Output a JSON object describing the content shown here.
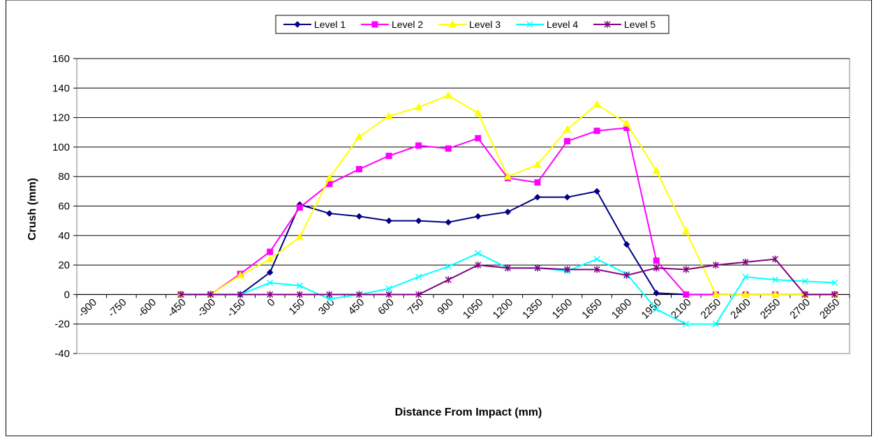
{
  "chart_data": {
    "type": "line",
    "title": "",
    "xlabel": "Distance From Impact (mm)",
    "ylabel": "Crush (mm)",
    "ylim": [
      -40,
      160
    ],
    "y_ticks": [
      -40,
      -20,
      0,
      20,
      40,
      60,
      80,
      100,
      120,
      140,
      160
    ],
    "x_ticks": [
      -900,
      -750,
      -600,
      -450,
      -300,
      -150,
      0,
      150,
      300,
      450,
      600,
      750,
      900,
      1050,
      1200,
      1350,
      1500,
      1650,
      1800,
      1950,
      2100,
      2250,
      2400,
      2550,
      2700,
      2850
    ],
    "grid": "horizontal",
    "legend_position": "top",
    "x": [
      -450,
      -300,
      -150,
      0,
      150,
      300,
      450,
      600,
      750,
      900,
      1050,
      1200,
      1350,
      1500,
      1650,
      1800,
      1950,
      2100,
      2250,
      2400,
      2550,
      2700,
      2850
    ],
    "series": [
      {
        "name": "Level 1",
        "color": "#000080",
        "marker": "diamond",
        "values": [
          0,
          0,
          0,
          15,
          61,
          55,
          53,
          50,
          50,
          49,
          53,
          56,
          66,
          66,
          70,
          34,
          1,
          0,
          0,
          0,
          0,
          0,
          0
        ]
      },
      {
        "name": "Level 2",
        "color": "#FF00FF",
        "marker": "square",
        "values": [
          0,
          0,
          14,
          29,
          59,
          75,
          85,
          94,
          101,
          99,
          106,
          79,
          76,
          104,
          111,
          113,
          23,
          0,
          0,
          0,
          0,
          0,
          0
        ]
      },
      {
        "name": "Level 3",
        "color": "#FFFF00",
        "marker": "triangle",
        "values": [
          0,
          0,
          13,
          24,
          39,
          79,
          107,
          121,
          127,
          135,
          123,
          80,
          88,
          112,
          129,
          116,
          84,
          43,
          0,
          0,
          0,
          0,
          0
        ]
      },
      {
        "name": "Level 4",
        "color": "#00FFFF",
        "marker": "x",
        "values": [
          0,
          0,
          0,
          8,
          6,
          -3,
          0,
          4,
          12,
          19,
          28,
          18,
          18,
          16,
          24,
          14,
          -10,
          -20,
          -20,
          12,
          10,
          9,
          8
        ]
      },
      {
        "name": "Level 5",
        "color": "#800080",
        "marker": "asterisk",
        "values": [
          0,
          0,
          0,
          0,
          0,
          0,
          0,
          0,
          0,
          10,
          20,
          18,
          18,
          17,
          17,
          13,
          18,
          17,
          20,
          22,
          24,
          0,
          0
        ]
      }
    ]
  }
}
